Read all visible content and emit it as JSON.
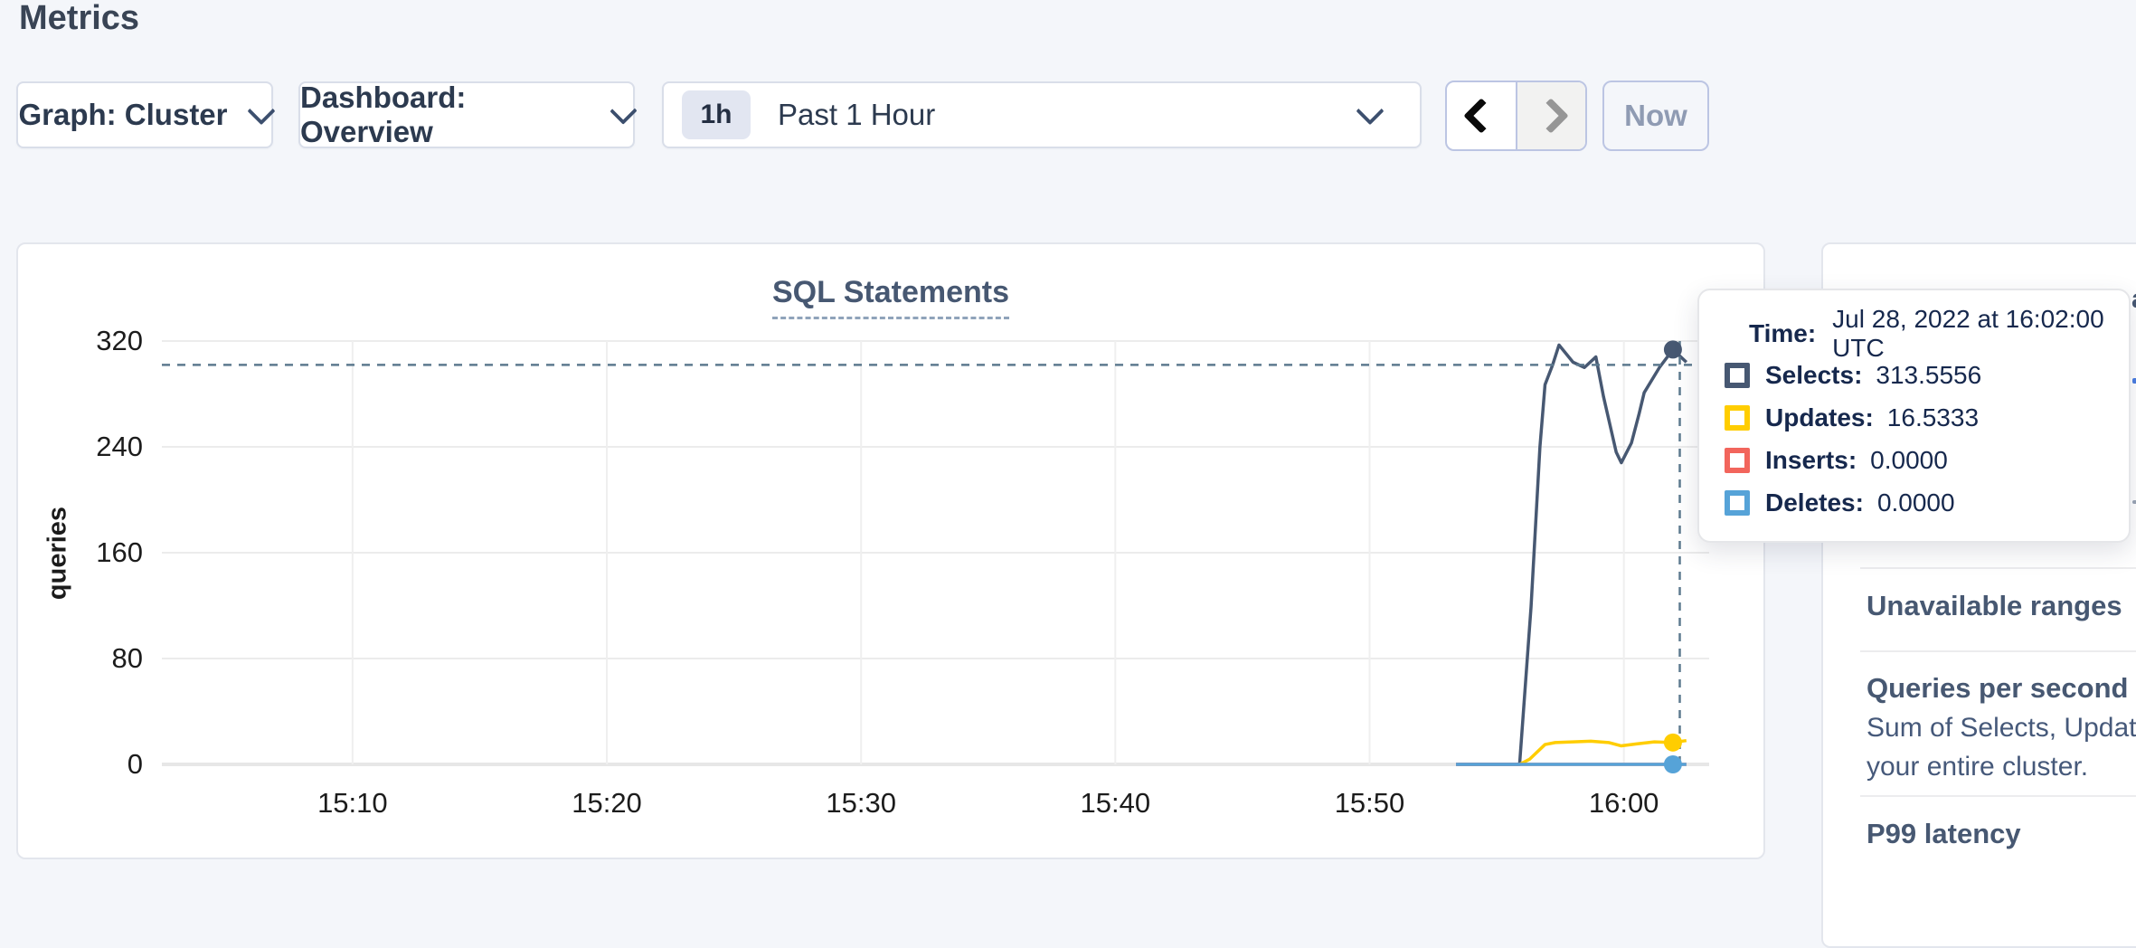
{
  "page": {
    "title": "Metrics",
    "background_color": "#f4f6fa"
  },
  "controls": {
    "graph_dropdown": {
      "label": "Graph: Cluster",
      "icon": "chevron-down-icon"
    },
    "dashboard_dropdown": {
      "label": "Dashboard: Overview",
      "icon": "chevron-down-icon"
    },
    "time_range_dropdown": {
      "badge": "1h",
      "label": "Past 1 Hour",
      "icon": "chevron-down-icon"
    },
    "prev_button": {
      "icon": "chevron-left-icon",
      "enabled": true
    },
    "next_button": {
      "icon": "chevron-right-icon",
      "enabled": false
    },
    "now_button": {
      "label": "Now",
      "enabled": false
    }
  },
  "tooltip": {
    "time_label": "Time:",
    "time_value": "Jul 28, 2022 at 16:02:00 UTC",
    "rows": [
      {
        "label": "Selects:",
        "value": "313.5556",
        "color": "#475872"
      },
      {
        "label": "Updates:",
        "value": "16.5333",
        "color": "#ffcd00"
      },
      {
        "label": "Inserts:",
        "value": "0.0000",
        "color": "#f2655c"
      },
      {
        "label": "Deletes:",
        "value": "0.0000",
        "color": "#56a3d8"
      }
    ]
  },
  "sidebar": {
    "obscured_fragment": "a",
    "sections": [
      {
        "title": "Unavailable ranges"
      },
      {
        "title": "Queries per second",
        "description_lines": [
          "Sum of Selects, Updates, Inser",
          "your entire cluster."
        ]
      },
      {
        "title": "P99 latency"
      }
    ]
  },
  "chart_data": {
    "type": "line",
    "title": "SQL Statements",
    "ylabel": "queries",
    "ylim": [
      0,
      320
    ],
    "y_ticks": [
      0,
      80,
      160,
      240,
      320
    ],
    "x_range_minutes_after_1500": [
      2.5,
      63
    ],
    "x_ticks": [
      {
        "minute": 10,
        "label": "15:10"
      },
      {
        "minute": 20,
        "label": "15:20"
      },
      {
        "minute": 30,
        "label": "15:30"
      },
      {
        "minute": 40,
        "label": "15:40"
      },
      {
        "minute": 50,
        "label": "15:50"
      },
      {
        "minute": 60,
        "label": "16:00"
      }
    ],
    "grid": true,
    "legend_position": "tooltip-only",
    "series": [
      {
        "name": "Selects",
        "color": "#475872",
        "points": [
          [
            53.4,
            0
          ],
          [
            55.9,
            0
          ],
          [
            56.35,
            119
          ],
          [
            56.7,
            240
          ],
          [
            56.9,
            287
          ],
          [
            57.2,
            302
          ],
          [
            57.45,
            317
          ],
          [
            58.0,
            304
          ],
          [
            58.45,
            300
          ],
          [
            58.9,
            308
          ],
          [
            59.2,
            278
          ],
          [
            59.7,
            236
          ],
          [
            59.9,
            228
          ],
          [
            60.3,
            243
          ],
          [
            60.6,
            265
          ],
          [
            60.8,
            281
          ],
          [
            61.4,
            300
          ],
          [
            61.93,
            313.5556
          ],
          [
            62.46,
            304
          ]
        ]
      },
      {
        "name": "Updates",
        "color": "#ffcd00",
        "points": [
          [
            55.9,
            0
          ],
          [
            56.3,
            4
          ],
          [
            56.9,
            15
          ],
          [
            57.3,
            16.5
          ],
          [
            58.0,
            17
          ],
          [
            58.7,
            17.5
          ],
          [
            59.4,
            16.5
          ],
          [
            59.9,
            14
          ],
          [
            60.5,
            15.5
          ],
          [
            61.2,
            17
          ],
          [
            61.93,
            16.5333
          ],
          [
            62.46,
            18
          ]
        ]
      },
      {
        "name": "Inserts",
        "color": "#f2655c",
        "points": [
          [
            53.4,
            0
          ],
          [
            62.46,
            0
          ]
        ]
      },
      {
        "name": "Deletes",
        "color": "#56a3d8",
        "points": [
          [
            53.4,
            0
          ],
          [
            62.46,
            0
          ]
        ]
      }
    ],
    "hover": {
      "dot_minute": 61.93,
      "crosshair_minute": 62.2,
      "crosshair_value": 302,
      "time": "Jul 28, 2022 at 16:02:00 UTC",
      "values": {
        "Selects": 313.5556,
        "Updates": 16.5333,
        "Inserts": 0.0,
        "Deletes": 0.0
      },
      "dot_series": [
        "Selects",
        "Updates",
        "Deletes"
      ]
    }
  }
}
